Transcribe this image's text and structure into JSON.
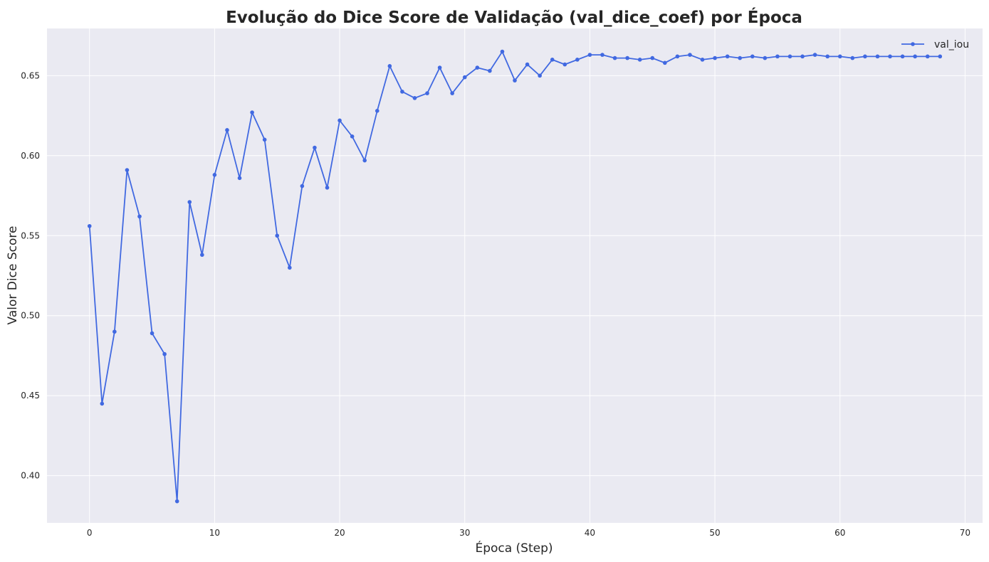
{
  "chart_data": {
    "type": "line",
    "title": "Evolução do Dice Score de Validação (val_dice_coef) por Época",
    "xlabel": "Época (Step)",
    "ylabel": "Valor Dice Score",
    "xlim": [
      -3.4,
      71.4
    ],
    "ylim": [
      0.3705,
      0.6795
    ],
    "xticks": [
      0,
      10,
      20,
      30,
      40,
      50,
      60,
      70
    ],
    "yticks": [
      0.4,
      0.45,
      0.5,
      0.55,
      0.6,
      0.65
    ],
    "ytick_labels": [
      "0.40",
      "0.45",
      "0.50",
      "0.55",
      "0.60",
      "0.65"
    ],
    "grid": true,
    "legend_position": "top-right",
    "series": [
      {
        "name": "val_iou",
        "color": "#4169e1",
        "x": [
          0,
          1,
          2,
          3,
          4,
          5,
          6,
          7,
          8,
          9,
          10,
          11,
          12,
          13,
          14,
          15,
          16,
          17,
          18,
          19,
          20,
          21,
          22,
          23,
          24,
          25,
          26,
          27,
          28,
          29,
          30,
          31,
          32,
          33,
          34,
          35,
          36,
          37,
          38,
          39,
          40,
          41,
          42,
          43,
          44,
          45,
          46,
          47,
          48,
          49,
          50,
          51,
          52,
          53,
          54,
          55,
          56,
          57,
          58,
          59,
          60,
          61,
          62,
          63,
          64,
          65,
          66,
          67,
          68
        ],
        "values": [
          0.556,
          0.445,
          0.49,
          0.591,
          0.562,
          0.489,
          0.476,
          0.384,
          0.571,
          0.538,
          0.588,
          0.616,
          0.586,
          0.627,
          0.61,
          0.55,
          0.53,
          0.581,
          0.605,
          0.58,
          0.622,
          0.612,
          0.597,
          0.628,
          0.656,
          0.64,
          0.636,
          0.639,
          0.655,
          0.639,
          0.649,
          0.655,
          0.653,
          0.665,
          0.647,
          0.657,
          0.65,
          0.66,
          0.657,
          0.66,
          0.663,
          0.663,
          0.661,
          0.661,
          0.66,
          0.661,
          0.658,
          0.662,
          0.663,
          0.66,
          0.661,
          0.662,
          0.661,
          0.662,
          0.661,
          0.662,
          0.662,
          0.662,
          0.663,
          0.662,
          0.662,
          0.661,
          0.662,
          0.662,
          0.662,
          0.662,
          0.662,
          0.662,
          0.662
        ]
      }
    ]
  }
}
